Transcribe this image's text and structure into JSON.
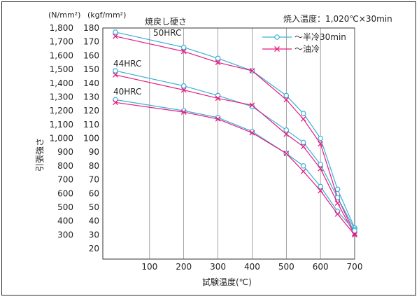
{
  "chart_data": {
    "type": "line",
    "title": "",
    "condition": "焼入温度：1,020℃×30min",
    "panel_title": "焼戻し硬さ",
    "xlabel": "試験温度(℃)",
    "ylabel_left": "引張強さ",
    "unit_left": "(N/mm²)",
    "unit_right": "(kgf/mm²)",
    "xlim": [
      0,
      700
    ],
    "ylim": [
      20,
      180
    ],
    "x_ticks": [
      "100",
      "200",
      "300",
      "400",
      "500",
      "600",
      "700"
    ],
    "y_ticks_kgf": [
      "20",
      "30",
      "40",
      "50",
      "60",
      "70",
      "80",
      "90",
      "100",
      "110",
      "120",
      "130",
      "140",
      "150",
      "160",
      "170",
      "180"
    ],
    "y_ticks_N": [
      "300",
      "400",
      "500",
      "600",
      "700",
      "800",
      "900",
      "1,000",
      "1,100",
      "1,200",
      "1,300",
      "1,400",
      "1,500",
      "1,600",
      "1,700",
      "1,800"
    ],
    "legend_position": "top-right",
    "colors": {
      "half_cooling": "#3ab0d6",
      "oil_cooling": "#e8197e"
    },
    "legend": [
      {
        "label": "～半冷30min",
        "key": "half_cooling",
        "marker": "circle"
      },
      {
        "label": "～油冷",
        "key": "oil_cooling",
        "marker": "cross"
      }
    ],
    "hardness_labels": [
      "50HRC",
      "44HRC",
      "40HRC"
    ],
    "series": [
      {
        "group": "50HRC",
        "key": "half_cooling",
        "marker": "circle",
        "x": [
          0,
          200,
          300,
          400,
          500,
          550,
          600,
          650,
          700
        ],
        "y": [
          177,
          166,
          158,
          149,
          131,
          118,
          100,
          63,
          35
        ]
      },
      {
        "group": "50HRC",
        "key": "oil_cooling",
        "marker": "cross",
        "x": [
          0,
          200,
          300,
          400,
          500,
          550,
          600,
          650,
          700
        ],
        "y": [
          174,
          163,
          155,
          149,
          128,
          114,
          96,
          57,
          31
        ]
      },
      {
        "group": "44HRC",
        "key": "half_cooling",
        "marker": "circle",
        "x": [
          0,
          200,
          300,
          400,
          500,
          550,
          600,
          650,
          700
        ],
        "y": [
          149,
          138,
          131,
          123,
          106,
          97,
          81,
          57,
          34
        ]
      },
      {
        "group": "44HRC",
        "key": "oil_cooling",
        "marker": "cross",
        "x": [
          0,
          200,
          300,
          400,
          500,
          550,
          600,
          650,
          700
        ],
        "y": [
          146,
          135,
          129,
          124,
          103,
          94,
          78,
          53,
          30
        ]
      },
      {
        "group": "40HRC",
        "key": "half_cooling",
        "marker": "circle",
        "x": [
          0,
          200,
          300,
          400,
          500,
          550,
          600,
          650,
          700
        ],
        "y": [
          128,
          120,
          115,
          105,
          89,
          80,
          65,
          47,
          33
        ]
      },
      {
        "group": "40HRC",
        "key": "oil_cooling",
        "marker": "cross",
        "x": [
          0,
          200,
          300,
          400,
          500,
          550,
          600,
          650,
          700
        ],
        "y": [
          126,
          119,
          114,
          104,
          89,
          76,
          62,
          45,
          30
        ]
      }
    ]
  }
}
